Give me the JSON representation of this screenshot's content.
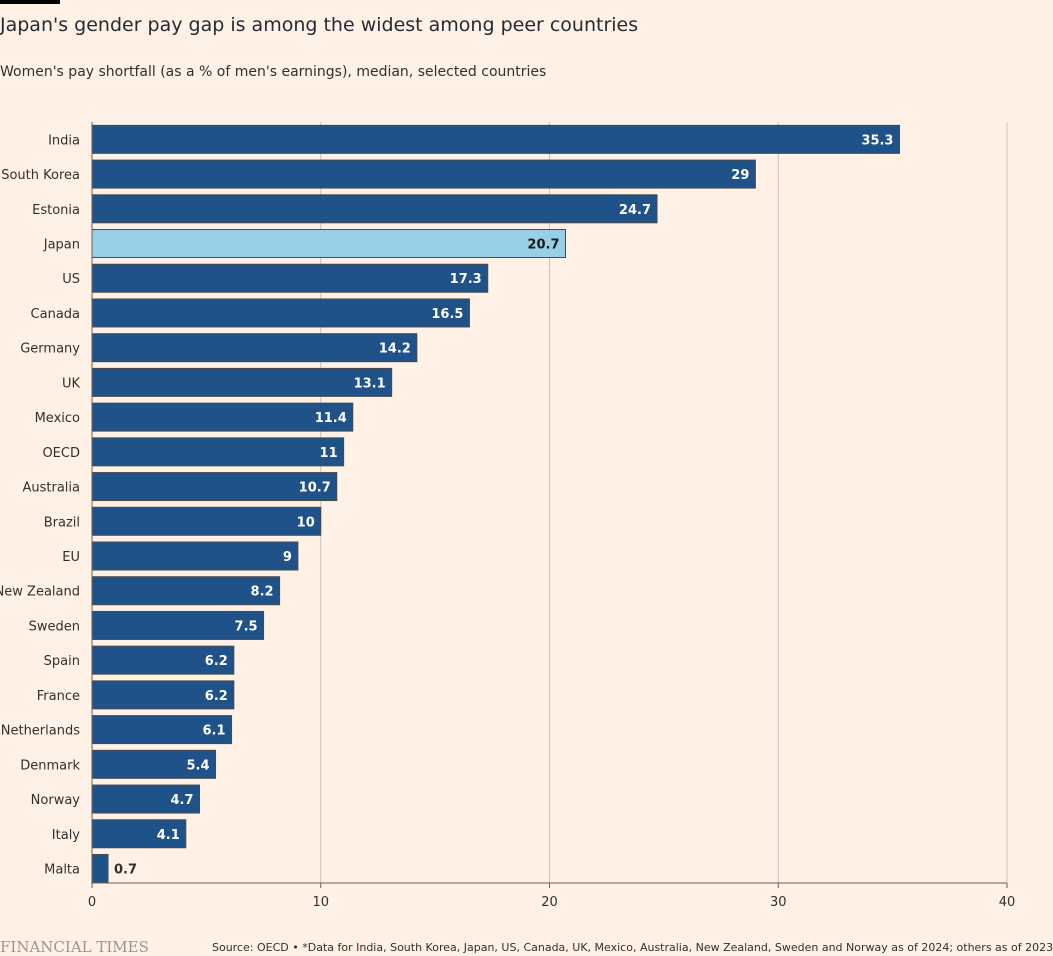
{
  "header": {
    "title": "Japan's gender pay gap is among the widest among peer countries",
    "subtitle": "Women's pay shortfall (as a % of men's earnings), median, selected countries"
  },
  "footer": {
    "logo": "FINANCIAL TIMES",
    "source": "Source: OECD • *Data for India, South Korea, Japan, US, Canada, UK, Mexico, Australia, New Zealand, Sweden and Norway as of 2024; others as of 2023"
  },
  "colors": {
    "background": "#fff1e5",
    "bar": "#1f5289",
    "highlight": "#96cfe6",
    "grid": "#ccc1b7"
  },
  "chart_data": {
    "type": "bar",
    "orientation": "horizontal",
    "categories": [
      "India",
      "South Korea",
      "Estonia",
      "Japan",
      "US",
      "Canada",
      "Germany",
      "UK",
      "Mexico",
      "OECD",
      "Australia",
      "Brazil",
      "EU",
      "New Zealand",
      "Sweden",
      "Spain",
      "France",
      "Netherlands",
      "Denmark",
      "Norway",
      "Italy",
      "Malta"
    ],
    "values": [
      35.3,
      29,
      24.7,
      20.7,
      17.3,
      16.5,
      14.2,
      13.1,
      11.4,
      11,
      10.7,
      10,
      9,
      8.2,
      7.5,
      6.2,
      6.2,
      6.1,
      5.4,
      4.7,
      4.1,
      0.7
    ],
    "value_labels": [
      "35.3",
      "29",
      "24.7",
      "20.7",
      "17.3",
      "16.5",
      "14.2",
      "13.1",
      "11.4",
      "11",
      "10.7",
      "10",
      "9",
      "8.2",
      "7.5",
      "6.2",
      "6.2",
      "6.1",
      "5.4",
      "4.7",
      "4.1",
      "0.7"
    ],
    "highlight": "Japan",
    "xlim": [
      0,
      40
    ],
    "xticks": [
      0,
      10,
      20,
      30,
      40
    ],
    "xtick_labels": [
      "0",
      "10",
      "20",
      "30",
      "40"
    ],
    "grid": true
  }
}
